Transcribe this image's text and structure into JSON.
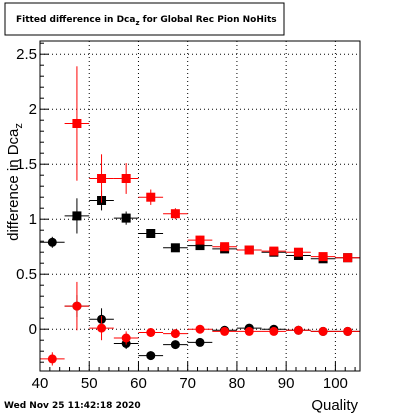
{
  "chart_data": {
    "type": "scatter",
    "title": "Fitted difference in Dca",
    "title_subscript": "z",
    "title_suffix": " for Global Rec Pion NoHits",
    "xlabel": "Quality",
    "ylabel": "difference in Dca",
    "ylabel_subscript": "z",
    "xlim": [
      40,
      105
    ],
    "ylim": [
      -0.38,
      2.62
    ],
    "x_ticks": [
      40,
      50,
      60,
      70,
      80,
      90,
      100
    ],
    "y_ticks": [
      0,
      0.5,
      1,
      1.5,
      2,
      2.5
    ],
    "y_tick_labels": [
      "0",
      "0.5",
      "1",
      "1.5",
      "2",
      "2.5"
    ],
    "grid": true,
    "x_halfwidth": 2.5,
    "footer": "Wed Nov 25 11:42:18 2020",
    "series": [
      {
        "color": "#000000",
        "marker": "square",
        "points": [
          {
            "x": 47.5,
            "y": 1.03,
            "err": 0.16
          },
          {
            "x": 52.5,
            "y": 1.17,
            "err": 0.09
          },
          {
            "x": 57.5,
            "y": 1.01,
            "err": 0.06
          },
          {
            "x": 62.5,
            "y": 0.87,
            "err": 0.04
          },
          {
            "x": 67.5,
            "y": 0.74,
            "err": 0.03
          },
          {
            "x": 72.5,
            "y": 0.76,
            "err": 0.03
          },
          {
            "x": 77.5,
            "y": 0.73,
            "err": 0.02
          },
          {
            "x": 82.5,
            "y": 0.72,
            "err": 0.02
          },
          {
            "x": 87.5,
            "y": 0.7,
            "err": 0.02
          },
          {
            "x": 92.5,
            "y": 0.67,
            "err": 0.02
          },
          {
            "x": 97.5,
            "y": 0.64,
            "err": 0.02
          },
          {
            "x": 102.5,
            "y": 0.65,
            "err": 0.02
          }
        ]
      },
      {
        "color": "#000000",
        "marker": "circle",
        "points": [
          {
            "x": 42.5,
            "y": 0.79,
            "err": 0.05
          },
          {
            "x": 47.5,
            "y": 0.21,
            "err": 0.1
          },
          {
            "x": 52.5,
            "y": 0.09,
            "err": 0.1
          },
          {
            "x": 57.5,
            "y": -0.13,
            "err": 0.05
          },
          {
            "x": 62.5,
            "y": -0.24,
            "err": 0.04
          },
          {
            "x": 67.5,
            "y": -0.14,
            "err": 0.03
          },
          {
            "x": 72.5,
            "y": -0.12,
            "err": 0.02
          },
          {
            "x": 77.5,
            "y": -0.01,
            "err": 0.02
          },
          {
            "x": 82.5,
            "y": 0.01,
            "err": 0.02
          },
          {
            "x": 87.5,
            "y": 0.0,
            "err": 0.02
          },
          {
            "x": 92.5,
            "y": -0.01,
            "err": 0.02
          },
          {
            "x": 97.5,
            "y": -0.02,
            "err": 0.02
          },
          {
            "x": 102.5,
            "y": -0.02,
            "err": 0.02
          }
        ]
      },
      {
        "color": "#ff0000",
        "marker": "square",
        "points": [
          {
            "x": 47.5,
            "y": 1.87,
            "err": 0.52
          },
          {
            "x": 52.5,
            "y": 1.37,
            "err": 0.22
          },
          {
            "x": 57.5,
            "y": 1.37,
            "err": 0.14
          },
          {
            "x": 62.5,
            "y": 1.2,
            "err": 0.07
          },
          {
            "x": 67.5,
            "y": 1.05,
            "err": 0.05
          },
          {
            "x": 72.5,
            "y": 0.81,
            "err": 0.04
          },
          {
            "x": 77.5,
            "y": 0.75,
            "err": 0.03
          },
          {
            "x": 82.5,
            "y": 0.72,
            "err": 0.02
          },
          {
            "x": 87.5,
            "y": 0.71,
            "err": 0.02
          },
          {
            "x": 92.5,
            "y": 0.7,
            "err": 0.02
          },
          {
            "x": 97.5,
            "y": 0.66,
            "err": 0.02
          },
          {
            "x": 102.5,
            "y": 0.65,
            "err": 0.02
          }
        ]
      },
      {
        "color": "#ff0000",
        "marker": "circle",
        "points": [
          {
            "x": 42.5,
            "y": -0.27,
            "err": 0.06
          },
          {
            "x": 47.5,
            "y": 0.21,
            "err": 0.22
          },
          {
            "x": 52.5,
            "y": 0.01,
            "err": 0.11
          },
          {
            "x": 57.5,
            "y": -0.08,
            "err": 0.06
          },
          {
            "x": 62.5,
            "y": -0.03,
            "err": 0.04
          },
          {
            "x": 67.5,
            "y": -0.04,
            "err": 0.03
          },
          {
            "x": 72.5,
            "y": 0.0,
            "err": 0.02
          },
          {
            "x": 77.5,
            "y": -0.02,
            "err": 0.02
          },
          {
            "x": 82.5,
            "y": -0.02,
            "err": 0.02
          },
          {
            "x": 87.5,
            "y": -0.02,
            "err": 0.02
          },
          {
            "x": 92.5,
            "y": -0.01,
            "err": 0.02
          },
          {
            "x": 97.5,
            "y": -0.02,
            "err": 0.02
          },
          {
            "x": 102.5,
            "y": -0.02,
            "err": 0.02
          }
        ]
      }
    ]
  }
}
